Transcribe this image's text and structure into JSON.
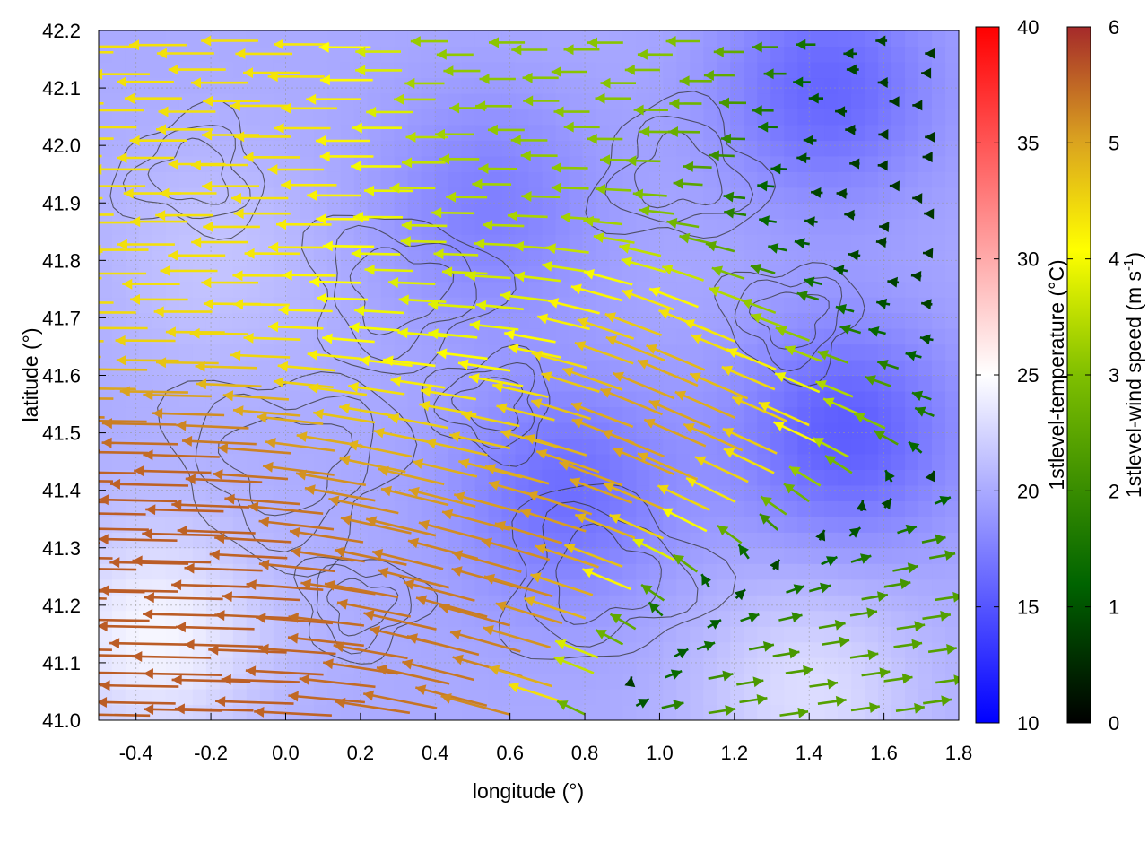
{
  "chart_data": {
    "type": "heatmap",
    "title": "",
    "xlabel": "longitude (°)",
    "ylabel": "latitude (°)",
    "xlim": [
      -0.5,
      1.8
    ],
    "ylim": [
      41.0,
      42.2
    ],
    "xticks": [
      "-0.4",
      "-0.2",
      "0.0",
      "0.2",
      "0.4",
      "0.6",
      "0.8",
      "1.0",
      "1.2",
      "1.4",
      "1.6",
      "1.8"
    ],
    "xtick_values": [
      -0.4,
      -0.2,
      0.0,
      0.2,
      0.4,
      0.6,
      0.8,
      1.0,
      1.2,
      1.4,
      1.6,
      1.8
    ],
    "yticks": [
      "41.0",
      "41.1",
      "41.2",
      "41.3",
      "41.4",
      "41.5",
      "41.6",
      "41.7",
      "41.8",
      "41.9",
      "42.0",
      "42.1",
      "42.2"
    ],
    "ytick_values": [
      41.0,
      41.1,
      41.2,
      41.3,
      41.4,
      41.5,
      41.6,
      41.7,
      41.8,
      41.9,
      42.0,
      42.1,
      42.2
    ],
    "grid": true,
    "temperature_colorbar": {
      "label": "1stlevel-temperature (°C)",
      "range": [
        10,
        40
      ],
      "ticks": [
        "10",
        "15",
        "20",
        "25",
        "30",
        "35",
        "40"
      ],
      "tick_values": [
        10,
        15,
        20,
        25,
        30,
        35,
        40
      ],
      "colors": [
        "#0000ff",
        "#ffffff",
        "#ff0000"
      ]
    },
    "wind_colorbar": {
      "label_main": "1stlevel-wind speed (m s",
      "label_sup": "-1",
      "label_end": ")",
      "range": [
        0,
        6
      ],
      "ticks": [
        "0",
        "1",
        "2",
        "3",
        "4",
        "5",
        "6"
      ],
      "tick_values": [
        0,
        1,
        2,
        3,
        4,
        5,
        6
      ],
      "colors": [
        "#000000",
        "#006400",
        "#7fbf00",
        "#ffff00",
        "#d9a020",
        "#a52a2a"
      ]
    },
    "temperature_field": {
      "background": 20,
      "features": [
        {
          "lon": 1.5,
          "lat": 41.5,
          "t": 15.5
        },
        {
          "lon": 1.45,
          "lat": 42.1,
          "t": 16
        },
        {
          "lon": 0.75,
          "lat": 41.4,
          "t": 16.5
        },
        {
          "lon": 0.55,
          "lat": 41.9,
          "t": 17.5
        },
        {
          "lon": -0.35,
          "lat": 41.15,
          "t": 24.5
        },
        {
          "lon": 1.4,
          "lat": 41.05,
          "t": 23
        },
        {
          "lon": -0.2,
          "lat": 41.8,
          "t": 21.5
        }
      ]
    },
    "wind_field": {
      "features": [
        {
          "name": "strong-westward",
          "lon": -0.1,
          "lat": 41.3,
          "u": -5.5,
          "v": 0.1
        },
        {
          "name": "moderate-west-north",
          "lon": -0.1,
          "lat": 41.85,
          "u": -4.0,
          "v": 0.0
        },
        {
          "name": "northwest-flow",
          "lon": 0.45,
          "lat": 41.4,
          "u": -5.0,
          "v": 1.6
        },
        {
          "name": "mid-band",
          "lon": 0.5,
          "lat": 41.65,
          "u": -3.0,
          "v": 0.0
        },
        {
          "name": "northeast-jet",
          "lon": 1.1,
          "lat": 41.55,
          "u": -4.5,
          "v": 2.2
        },
        {
          "name": "calm-east",
          "lon": 1.5,
          "lat": 41.85,
          "u": -0.6,
          "v": 0.0
        },
        {
          "name": "southeast-inflow",
          "lon": 1.5,
          "lat": 41.1,
          "u": 2.0,
          "v": 0.3
        },
        {
          "name": "northern-band",
          "lon": 0.9,
          "lat": 42.05,
          "u": -2.5,
          "v": 0.0
        }
      ]
    }
  }
}
